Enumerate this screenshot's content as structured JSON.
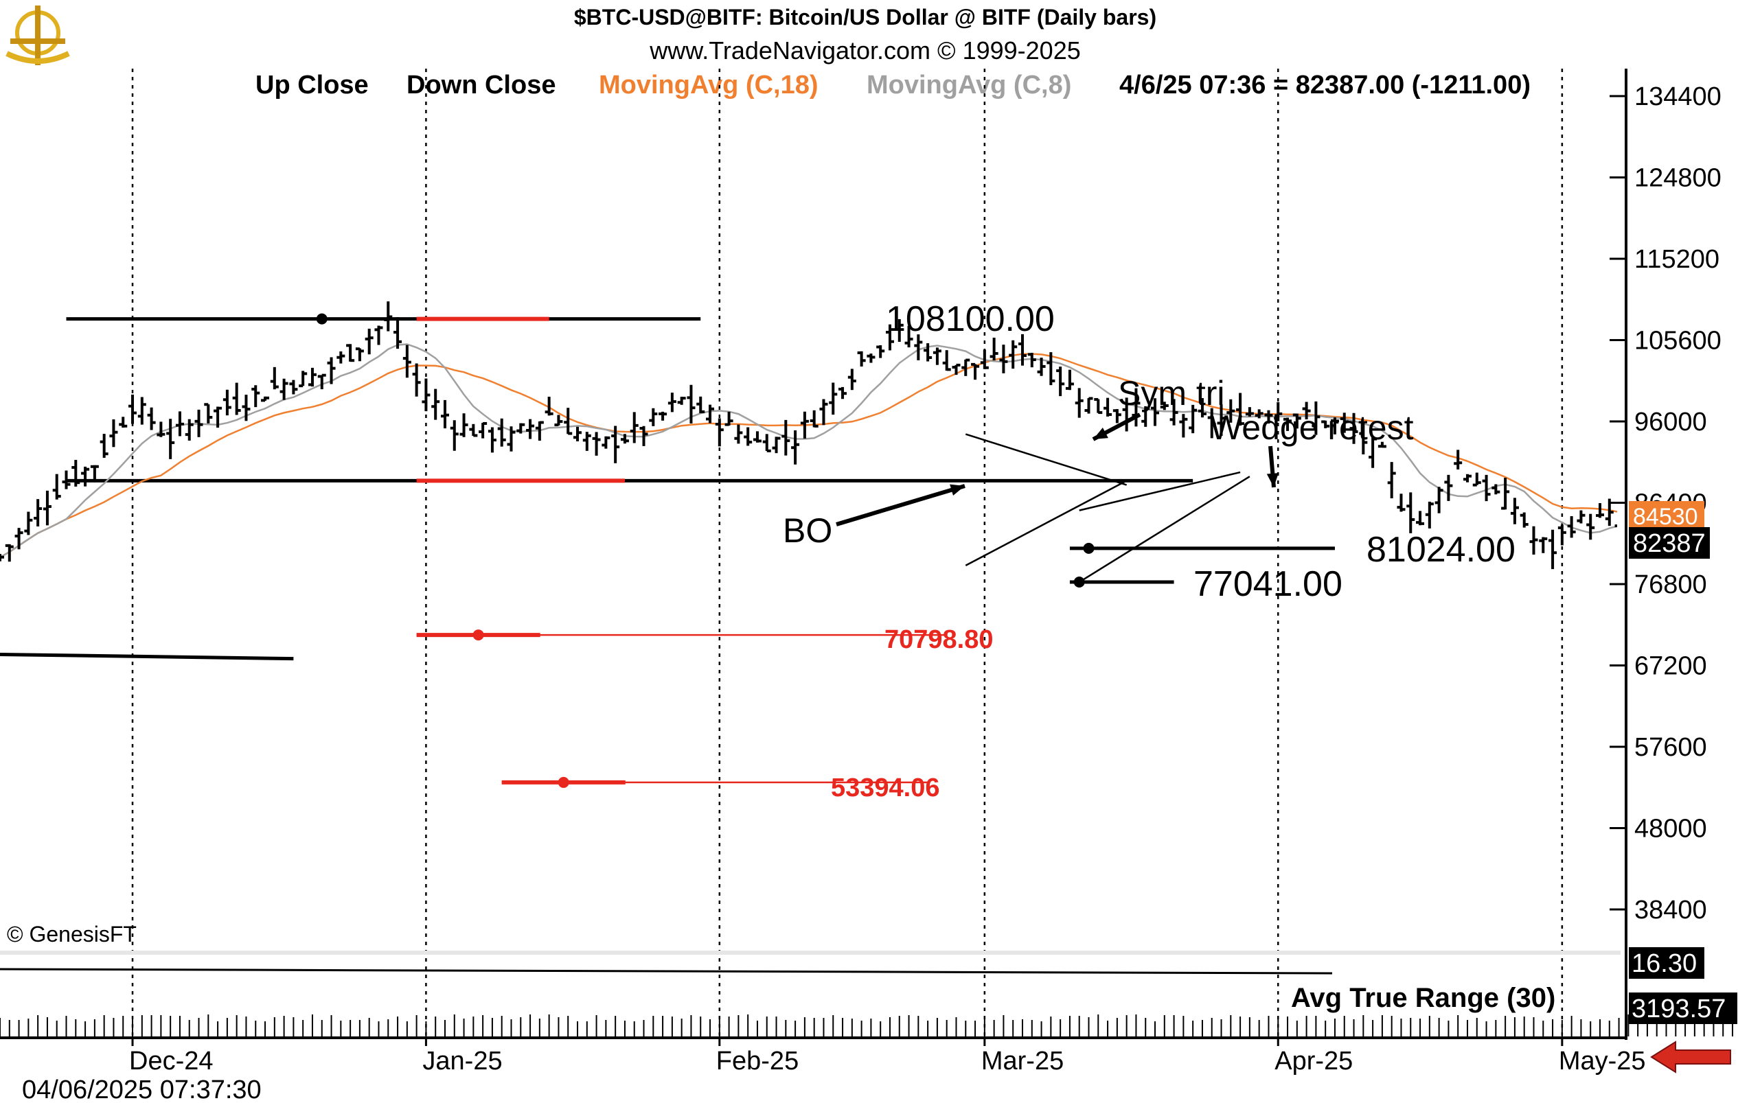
{
  "header": {
    "title": "$BTC-USD@BITF:  Bitcoin/US Dollar @ BITF  (Daily bars)",
    "subtitle": "www.TradeNavigator.com © 1999-2025"
  },
  "legend": {
    "up_close": "Up Close",
    "down_close": "Down Close",
    "ma18": "MovingAvg (C,18)",
    "ma8": "MovingAvg (C,8)",
    "readout": "4/6/25 07:36 = 82387.00 (-1211.00)"
  },
  "colors": {
    "bars": "#000000",
    "ma18": "#f08030",
    "ma8": "#a0a0a0",
    "levels_red": "#e8281e",
    "price_box": "#000000",
    "ma_box": "#f08030",
    "arrow": "#d62a1e"
  },
  "annotations": {
    "resistance": "108100.00",
    "low_level": "81024.00",
    "swing_low": "77041.00",
    "target1": "70798.80",
    "target2": "53394.06",
    "sym_tri": "Sym tri",
    "wedge_retest": "Wedge retest",
    "bo": "BO"
  },
  "price_boxes": {
    "last": "82387",
    "ma": "84530"
  },
  "indicator": {
    "name": "Avg True Range (30)",
    "value1": "16.30",
    "value2": "3193.57"
  },
  "footer": {
    "copyright": "© GenesisFT",
    "timestamp": "04/06/2025 07:37:30"
  },
  "chart_data": {
    "type": "bar",
    "title": "$BTC-USD@BITF:  Bitcoin/US Dollar @ BITF  (Daily bars)",
    "yaxis_ticks": [
      "134400",
      "124800",
      "115200",
      "105600",
      "96000",
      "86400",
      "76800",
      "67200",
      "57600",
      "48000",
      "38400"
    ],
    "ylim": [
      33000,
      139000
    ],
    "xaxis_ticks": [
      "Dec-24",
      "Jan-25",
      "Feb-25",
      "Mar-25",
      "Apr-25",
      "May-25"
    ],
    "x_range": [
      "2024-11-17",
      "2025-05-05"
    ],
    "levels": [
      {
        "label": "108100.00",
        "value": 108100,
        "x_start": "2024-11-24",
        "x_end": "2025-01-30"
      },
      {
        "label": "",
        "value": 89000,
        "x_start": "2024-11-24",
        "x_end": "2025-03-23"
      },
      {
        "label": "81024.00",
        "value": 81024,
        "x_start": "2025-03-10",
        "x_end": "2025-04-07"
      },
      {
        "label": "77041.00",
        "value": 77041,
        "x_start": "2025-03-10",
        "x_end": "2025-03-21"
      },
      {
        "label": "70798.80",
        "value": 70798.8,
        "x_start": "2024-12-31",
        "x_end": "2025-02-25"
      },
      {
        "label": "53394.06",
        "value": 53394.06,
        "x_start": "2025-01-09",
        "x_end": "2025-02-23"
      }
    ],
    "last_close": 82387,
    "last_change": -1211
  }
}
